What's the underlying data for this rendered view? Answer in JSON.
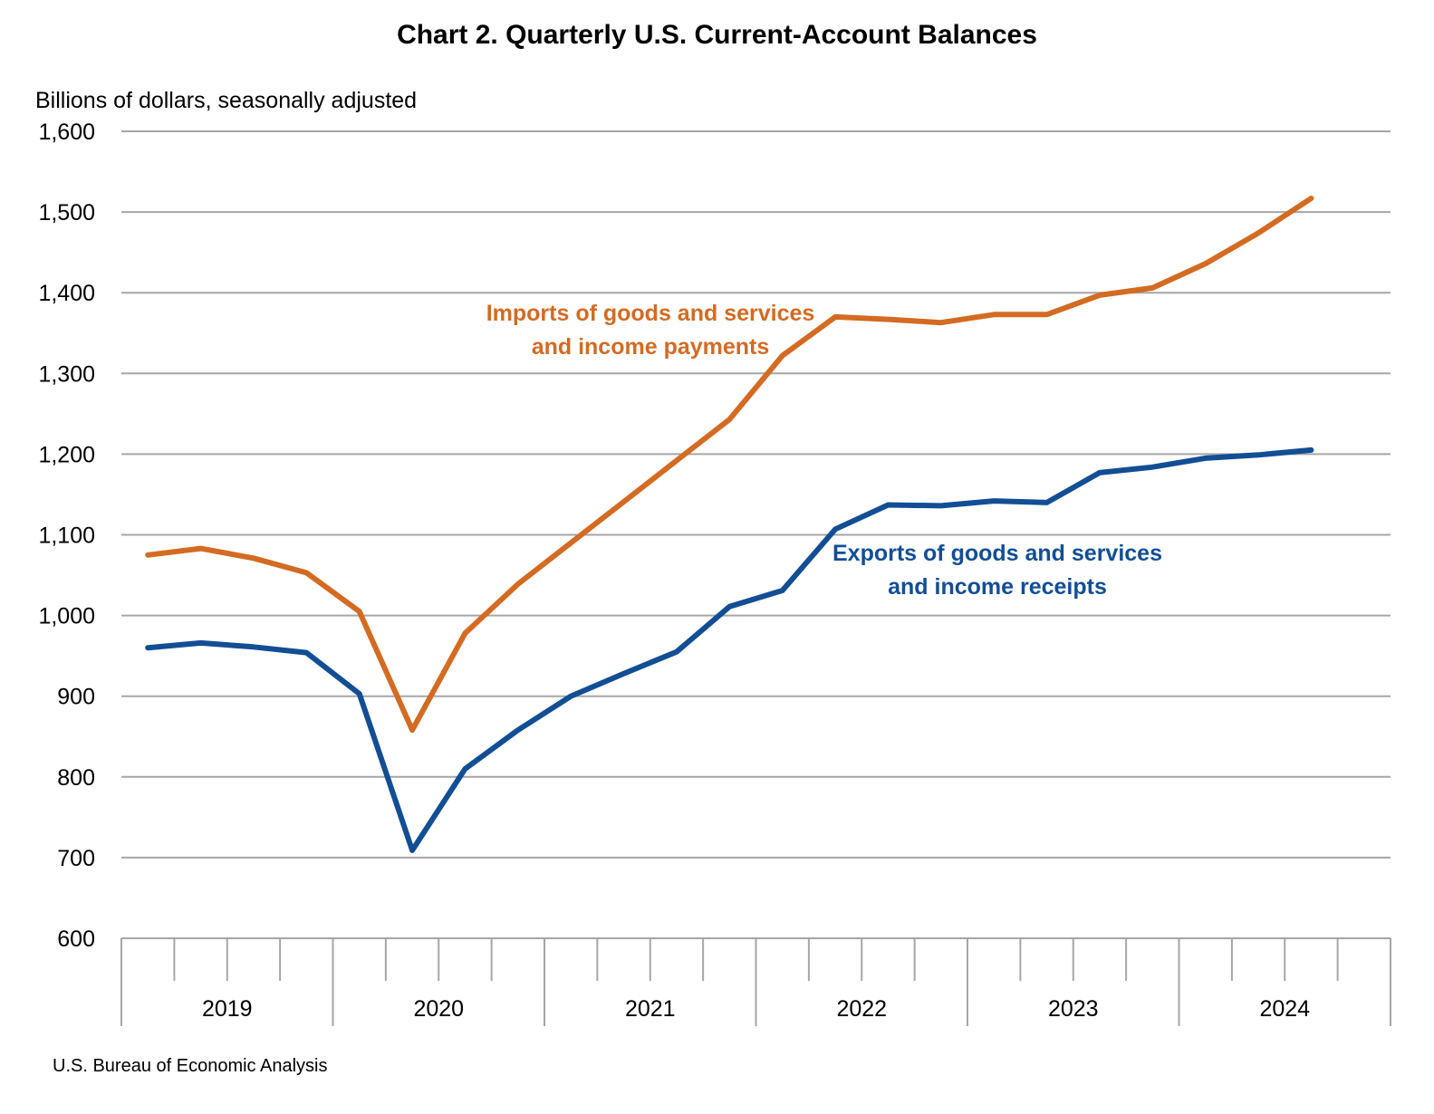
{
  "chart_data": {
    "type": "line",
    "title": "Chart 2. Quarterly U.S. Current-Account Balances",
    "ylabel": "Billions of dollars, seasonally adjusted",
    "source": "U.S. Bureau of Economic Analysis",
    "ylim": [
      600,
      1600
    ],
    "yticks": [
      600,
      700,
      800,
      900,
      1000,
      1100,
      1200,
      1300,
      1400,
      1500,
      1600
    ],
    "ytick_labels": [
      "600",
      "700",
      "800",
      "900",
      "1,000",
      "1,100",
      "1,200",
      "1,300",
      "1,400",
      "1,500",
      "1,600"
    ],
    "years": [
      "2019",
      "2020",
      "2021",
      "2022",
      "2023",
      "2024"
    ],
    "quarters_per_year": 4,
    "grid": true,
    "legend": "none",
    "series": [
      {
        "name": "Imports of goods and services and income payments",
        "label_lines": [
          "Imports of goods and services",
          "and income payments"
        ],
        "color": "#D36B23",
        "values": [
          1075,
          1083,
          1071,
          1053,
          1005,
          858,
          978,
          1039,
          1090,
          1141,
          1192,
          1243,
          1322,
          1370,
          1367,
          1363,
          1373,
          1373,
          1397,
          1406,
          1436,
          1474,
          1517
        ]
      },
      {
        "name": "Exports of goods and services and income receipts",
        "label_lines": [
          "Exports of goods and services",
          "and income receipts"
        ],
        "color": "#124E94",
        "values": [
          960,
          966,
          961,
          954,
          903,
          709,
          810,
          858,
          900,
          928,
          955,
          1011,
          1031,
          1107,
          1137,
          1136,
          1142,
          1140,
          1177,
          1184,
          1195,
          1199,
          1205
        ]
      }
    ]
  }
}
